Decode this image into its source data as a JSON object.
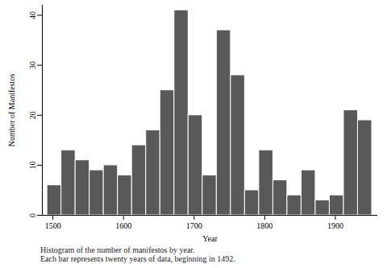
{
  "chart_data": {
    "type": "histogram",
    "x_label": "Year",
    "y_label": "Number of Manifestos",
    "caption": [
      "Histogram of the number of manifestos by year.",
      "Each bar represents twenty years of data, beginning in 1492."
    ],
    "bins": [
      1492,
      1512,
      1532,
      1552,
      1572,
      1592,
      1612,
      1632,
      1652,
      1672,
      1692,
      1712,
      1732,
      1752,
      1772,
      1792,
      1812,
      1832,
      1852,
      1872,
      1892,
      1912,
      1932,
      1952
    ],
    "values": [
      6,
      13,
      11,
      9,
      10,
      8,
      14,
      17,
      25,
      41,
      20,
      8,
      37,
      28,
      5,
      13,
      7,
      4,
      9,
      3,
      4,
      21,
      19
    ],
    "color": "#595959",
    "xlim": [
      1485,
      1960
    ],
    "xticks": [
      1500,
      1600,
      1700,
      1800,
      1900
    ],
    "ylim": [
      0,
      42
    ],
    "yticks": [
      0,
      10,
      20,
      30,
      40
    ],
    "grid": false
  }
}
